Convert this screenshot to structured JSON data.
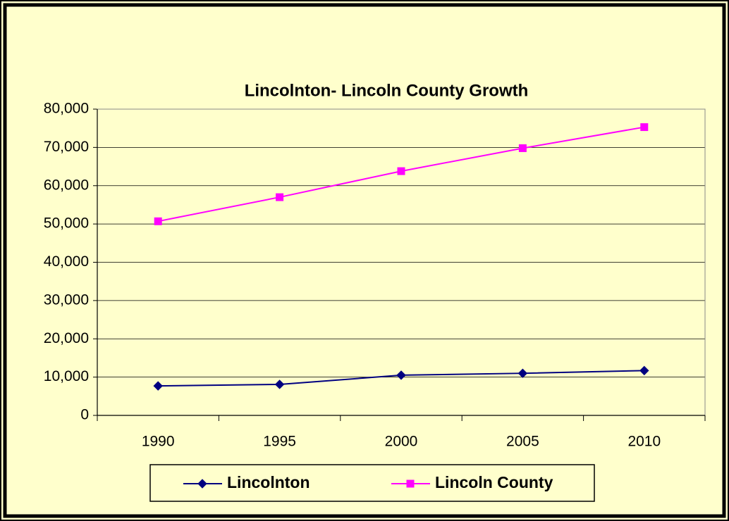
{
  "chart_data": {
    "type": "line",
    "title": "Lincolnton- Lincoln County Growth",
    "categories": [
      "1990",
      "1995",
      "2000",
      "2005",
      "2010"
    ],
    "series": [
      {
        "name": "Lincolnton",
        "color": "#000080",
        "marker": "diamond",
        "values": [
          7700,
          8100,
          10500,
          11000,
          11700
        ]
      },
      {
        "name": "Lincoln County",
        "color": "#ff00ff",
        "marker": "square",
        "values": [
          50700,
          57000,
          63800,
          69800,
          75300
        ]
      }
    ],
    "ylim": [
      0,
      80000
    ],
    "yticks": [
      0,
      {
        "value": 10000,
        "label": "10,000"
      },
      {
        "value": 20000,
        "label": "20,000"
      },
      {
        "value": 30000,
        "label": "30,000"
      },
      {
        "value": 40000,
        "label": "40,000"
      },
      {
        "value": 50000,
        "label": "50,000"
      },
      {
        "value": 60000,
        "label": "60,000"
      },
      {
        "value": 70000,
        "label": "70,000"
      },
      {
        "value": 80000,
        "label": "80,000"
      }
    ],
    "grid": true,
    "legend": "bottom"
  }
}
